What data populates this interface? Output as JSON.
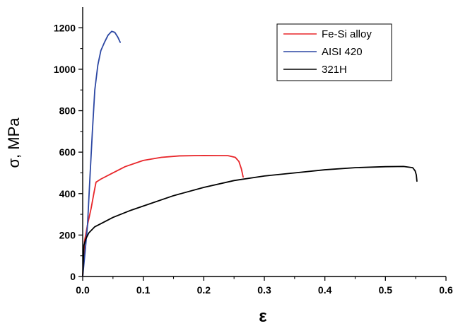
{
  "chart_data": {
    "type": "line",
    "xlabel": "ε",
    "ylabel": "σ, MPa",
    "xlim": [
      0,
      0.6
    ],
    "ylim": [
      0,
      1300
    ],
    "x_ticks": [
      "0.0",
      "0.1",
      "0.2",
      "0.3",
      "0.4",
      "0.5",
      "0.6"
    ],
    "y_ticks": [
      "0",
      "200",
      "400",
      "600",
      "800",
      "1000",
      "1200"
    ],
    "grid": false,
    "legend_position": "top-right",
    "series": [
      {
        "name": "Fe-Si alloy",
        "color": "#e8262a",
        "points": [
          [
            0,
            0
          ],
          [
            0.003,
            170
          ],
          [
            0.008,
            250
          ],
          [
            0.014,
            330
          ],
          [
            0.019,
            410
          ],
          [
            0.022,
            455
          ],
          [
            0.03,
            470
          ],
          [
            0.05,
            500
          ],
          [
            0.07,
            530
          ],
          [
            0.1,
            560
          ],
          [
            0.13,
            575
          ],
          [
            0.16,
            582
          ],
          [
            0.2,
            584
          ],
          [
            0.24,
            583
          ],
          [
            0.252,
            575
          ],
          [
            0.258,
            555
          ],
          [
            0.262,
            520
          ],
          [
            0.265,
            480
          ]
        ]
      },
      {
        "name": "AISI 420",
        "color": "#2c47a3",
        "points": [
          [
            0,
            0
          ],
          [
            0.004,
            120
          ],
          [
            0.008,
            250
          ],
          [
            0.012,
            480
          ],
          [
            0.016,
            700
          ],
          [
            0.02,
            900
          ],
          [
            0.025,
            1020
          ],
          [
            0.03,
            1090
          ],
          [
            0.036,
            1130
          ],
          [
            0.042,
            1165
          ],
          [
            0.048,
            1183
          ],
          [
            0.053,
            1178
          ],
          [
            0.058,
            1155
          ],
          [
            0.062,
            1130
          ]
        ]
      },
      {
        "name": "321H",
        "color": "#000000",
        "points": [
          [
            0,
            0
          ],
          [
            0.002,
            150
          ],
          [
            0.005,
            180
          ],
          [
            0.01,
            210
          ],
          [
            0.02,
            240
          ],
          [
            0.03,
            255
          ],
          [
            0.05,
            285
          ],
          [
            0.08,
            320
          ],
          [
            0.1,
            340
          ],
          [
            0.15,
            390
          ],
          [
            0.2,
            430
          ],
          [
            0.25,
            463
          ],
          [
            0.3,
            485
          ],
          [
            0.35,
            500
          ],
          [
            0.4,
            515
          ],
          [
            0.45,
            525
          ],
          [
            0.5,
            530
          ],
          [
            0.53,
            531
          ],
          [
            0.545,
            525
          ],
          [
            0.549,
            510
          ],
          [
            0.551,
            490
          ],
          [
            0.552,
            460
          ]
        ]
      }
    ]
  }
}
